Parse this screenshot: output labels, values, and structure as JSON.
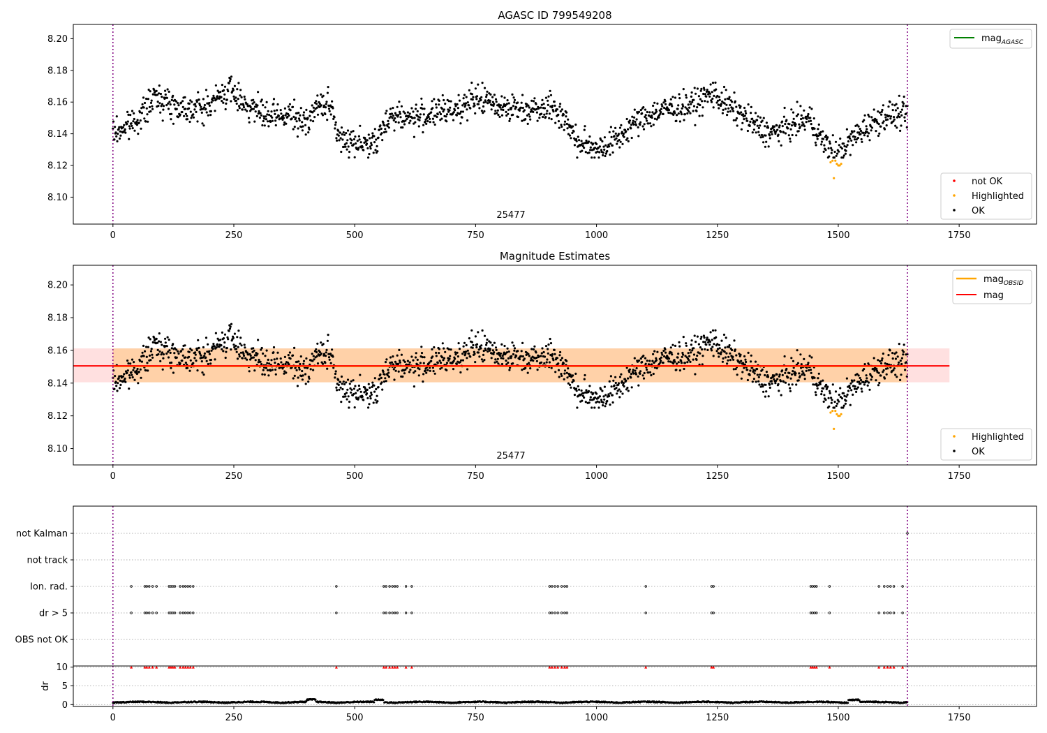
{
  "chart_data": [
    {
      "type": "scatter",
      "title": "AGASC ID 799549208",
      "xlim": [
        -82,
        1910
      ],
      "ylim": [
        8.083,
        8.209
      ],
      "xticks": [
        "0",
        "250",
        "500",
        "750",
        "1000",
        "1250",
        "1500",
        "1750"
      ],
      "yticks": [
        "8.10",
        "8.12",
        "8.14",
        "8.16",
        "8.18",
        "8.20"
      ],
      "obsid_label": "25477",
      "vlines": [
        0,
        1643
      ],
      "legend_upper": [
        {
          "name": "mag_AGASC",
          "color": "#008000",
          "base": "mag",
          "sub": "AGASC"
        }
      ],
      "legend_lower": [
        {
          "name": "not OK",
          "color": "#ff0000"
        },
        {
          "name": "Highlighted",
          "color": "#ffa500"
        },
        {
          "name": "OK",
          "color": "#000000"
        }
      ],
      "series": [
        {
          "name": "OK",
          "color": "#000000",
          "n_points": 1640,
          "x_range": [
            0,
            1643
          ],
          "y_range": [
            8.125,
            8.178
          ]
        },
        {
          "name": "Highlighted",
          "color": "#ffa500",
          "x": [
            1484,
            1488,
            1491,
            1494,
            1497,
            1500,
            1503,
            1506
          ],
          "y": [
            8.122,
            8.123,
            8.112,
            8.123,
            8.121,
            8.12,
            8.12,
            8.121
          ]
        }
      ]
    },
    {
      "type": "scatter",
      "title": "Magnitude Estimates",
      "xlim": [
        -82,
        1910
      ],
      "ylim": [
        8.09,
        8.212
      ],
      "xticks": [
        "0",
        "250",
        "500",
        "750",
        "1000",
        "1250",
        "1500",
        "1750"
      ],
      "yticks": [
        "8.10",
        "8.12",
        "8.14",
        "8.16",
        "8.18",
        "8.20"
      ],
      "obsid_label": "25477",
      "vlines": [
        0,
        1643
      ],
      "mag": 8.1505,
      "mag_band": [
        8.1405,
        8.1612
      ],
      "mag_obsid": 8.1503,
      "legend_upper": [
        {
          "name": "mag_OBSID",
          "color": "#ffa500",
          "base": "mag",
          "sub": "OBSID"
        },
        {
          "name": "mag",
          "color": "#ff0000",
          "base": "mag",
          "sub": ""
        }
      ],
      "legend_lower": [
        {
          "name": "Highlighted",
          "color": "#ffa500"
        },
        {
          "name": "OK",
          "color": "#000000"
        }
      ]
    },
    {
      "type": "scatter",
      "title": "",
      "xlim": [
        -82,
        1910
      ],
      "xticks": [
        "0",
        "250",
        "500",
        "750",
        "1000",
        "1250",
        "1500",
        "1750"
      ],
      "categories": [
        "not Kalman",
        "not track",
        "Ion. rad.",
        "dr > 5",
        "OBS not OK"
      ],
      "flags": {
        "not Kalman": [
          1643
        ],
        "not track": [],
        "Ion. rad.": [
          38,
          66,
          70,
          75,
          82,
          90,
          116,
          120,
          124,
          128,
          139,
          145,
          150,
          155,
          160,
          166,
          462,
          560,
          565,
          572,
          578,
          583,
          588,
          606,
          618,
          903,
          908,
          914,
          920,
          928,
          934,
          939,
          1102,
          1238,
          1242,
          1443,
          1447,
          1451,
          1455,
          1482,
          1584,
          1595,
          1602,
          1608,
          1615,
          1633
        ],
        "dr > 5": [
          38,
          66,
          70,
          75,
          82,
          90,
          116,
          120,
          124,
          128,
          139,
          145,
          150,
          155,
          160,
          166,
          462,
          560,
          565,
          572,
          578,
          583,
          588,
          606,
          618,
          903,
          908,
          914,
          920,
          928,
          934,
          939,
          1102,
          1238,
          1242,
          1443,
          1447,
          1451,
          1455,
          1482,
          1584,
          1595,
          1602,
          1608,
          1615,
          1633
        ],
        "OBS not OK": []
      },
      "vlines": [
        0,
        1643
      ]
    },
    {
      "type": "scatter",
      "title": "",
      "ylabel": "dr",
      "xlim": [
        -82,
        1910
      ],
      "ylim": [
        -0.5,
        10.3
      ],
      "xticks": [
        "0",
        "250",
        "500",
        "750",
        "1000",
        "1250",
        "1500",
        "1750"
      ],
      "yticks": [
        "0",
        "5",
        "10"
      ],
      "clip_value": 10,
      "vlines": [
        0,
        1643
      ]
    }
  ]
}
